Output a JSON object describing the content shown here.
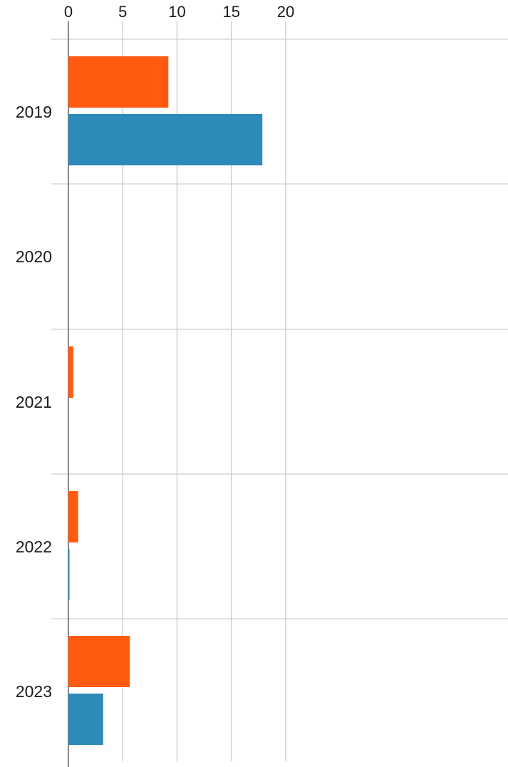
{
  "chart_data": {
    "type": "bar",
    "orientation": "horizontal",
    "categories": [
      "2019",
      "2020",
      "2021",
      "2022",
      "2023"
    ],
    "series": [
      {
        "color": "#ff5a10",
        "values": [
          9.2,
          0,
          0.45,
          0.9,
          5.65
        ]
      },
      {
        "color": "#2e8ab8",
        "values": [
          17.85,
          0,
          0,
          0.08,
          3.2
        ]
      }
    ],
    "xlim": [
      0,
      20
    ],
    "x_ticks": [
      "0",
      "5",
      "10",
      "15",
      "20"
    ],
    "x_axis_position": "top",
    "grid": true,
    "legend": "none"
  }
}
